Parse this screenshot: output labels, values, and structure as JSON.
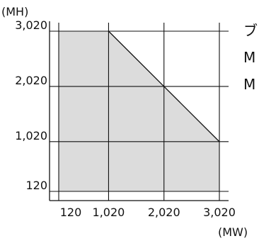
{
  "chart_data": {
    "type": "area",
    "y_unit": "(MH)",
    "x_unit": "(MW)",
    "x_ticks": [
      "120",
      "1,020",
      "2,020",
      "3,020"
    ],
    "y_ticks": [
      "3,020",
      "2,020",
      "1,020",
      "120"
    ],
    "x_tick_values": [
      120,
      1020,
      2020,
      3020
    ],
    "y_tick_values": [
      3020,
      2020,
      1020,
      120
    ],
    "xlim": [
      120,
      3020
    ],
    "ylim": [
      120,
      3020
    ],
    "region_boundary": [
      {
        "x": 120,
        "y": 120
      },
      {
        "x": 120,
        "y": 3020
      },
      {
        "x": 1020,
        "y": 3020
      },
      {
        "x": 2020,
        "y": 2020
      },
      {
        "x": 3020,
        "y": 1020
      },
      {
        "x": 3020,
        "y": 120
      }
    ],
    "fill_color": "#dcdcdc",
    "grid": true
  },
  "side_labels": [
    "ブ",
    "M",
    "M"
  ]
}
